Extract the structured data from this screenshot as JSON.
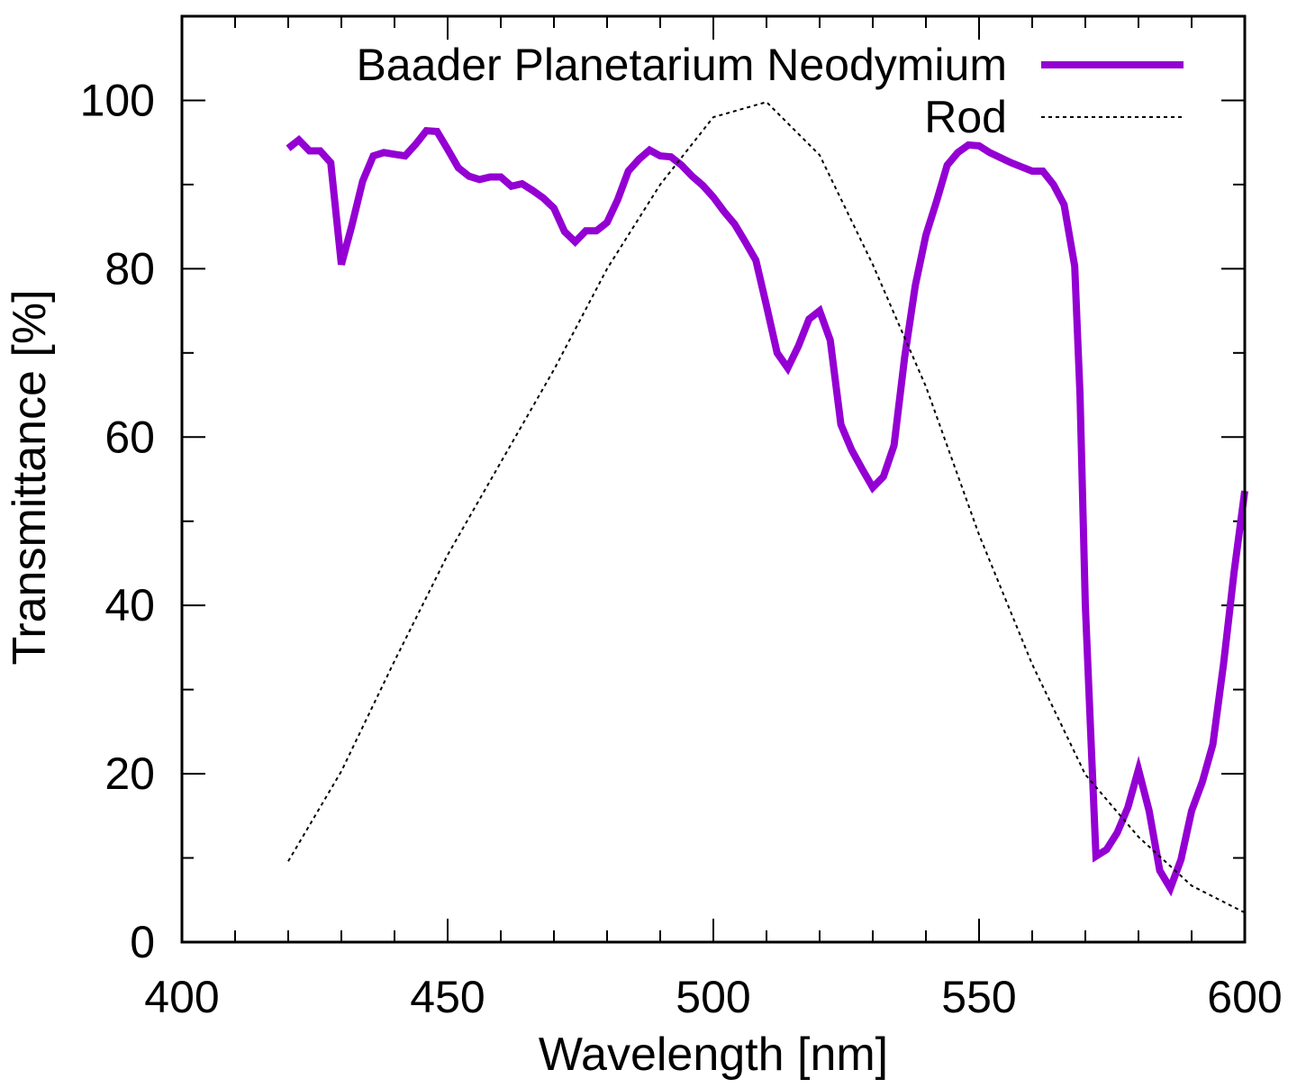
{
  "chart_data": {
    "type": "line",
    "xlabel": "Wavelength [nm]",
    "ylabel": "Transmittance [%]",
    "xlim": [
      400,
      600
    ],
    "ylim": [
      0,
      110
    ],
    "x_ticks": [
      400,
      450,
      500,
      550,
      600
    ],
    "x_minor_step": 10,
    "y_ticks": [
      0,
      20,
      40,
      60,
      80,
      100
    ],
    "y_minor_step": 10,
    "legend_position": "top-right",
    "series": [
      {
        "name": "Baader Planetarium Neodymium",
        "color": "#9400d3",
        "style": "solid-thick",
        "x": [
          420,
          422,
          424,
          426,
          428,
          430,
          432,
          434,
          436,
          438,
          440,
          442,
          444,
          446,
          448,
          450,
          452,
          454,
          456,
          458,
          460,
          462,
          464,
          466,
          468,
          470,
          472,
          474,
          476,
          478,
          480,
          482,
          484,
          486,
          488,
          490,
          492,
          494,
          496,
          498,
          500,
          502,
          504,
          506,
          508,
          510,
          512,
          514,
          516,
          518,
          520,
          522,
          524,
          526,
          528,
          530,
          532,
          534,
          536,
          538,
          540,
          542,
          544,
          546,
          548,
          550,
          552,
          554,
          556,
          558,
          560,
          562,
          564,
          566,
          568,
          569,
          570,
          571,
          572,
          574,
          576,
          578,
          580,
          582,
          584,
          586,
          588,
          590,
          592,
          594,
          596,
          598,
          600
        ],
        "y": [
          94.3,
          95.3,
          94.0,
          94.0,
          92.6,
          80.5,
          85.2,
          90.4,
          93.4,
          93.8,
          93.6,
          93.4,
          94.8,
          96.4,
          96.3,
          94.2,
          92.0,
          91.0,
          90.6,
          90.9,
          90.9,
          89.8,
          90.1,
          89.3,
          88.4,
          87.2,
          84.4,
          83.2,
          84.5,
          84.5,
          85.5,
          88.2,
          91.6,
          93.0,
          94.1,
          93.4,
          93.3,
          92.3,
          91.0,
          89.9,
          88.5,
          86.8,
          85.3,
          83.2,
          81.0,
          75.6,
          70.0,
          68.2,
          70.8,
          74.0,
          75.0,
          71.5,
          61.5,
          58.5,
          56.2,
          54.0,
          55.3,
          59.0,
          69.5,
          78.0,
          84.0,
          88.0,
          92.3,
          93.8,
          94.7,
          94.6,
          93.8,
          93.2,
          92.6,
          92.1,
          91.6,
          91.6,
          90.0,
          87.6,
          80.3,
          65.0,
          40.0,
          25.0,
          10.2,
          11.0,
          13.0,
          16.0,
          20.5,
          15.6,
          8.5,
          6.4,
          9.8,
          15.6,
          19.0,
          23.5,
          33.0,
          44.0,
          53.6
        ]
      },
      {
        "name": "Rod",
        "color": "#000000",
        "style": "dotted-thin",
        "x": [
          420,
          430,
          440,
          450,
          460,
          470,
          480,
          490,
          500,
          510,
          520,
          530,
          540,
          550,
          560,
          570,
          580,
          590,
          600
        ],
        "y": [
          9.6,
          20.3,
          33.4,
          46.0,
          57.0,
          68.0,
          80.0,
          90.0,
          98.0,
          99.8,
          93.5,
          80.5,
          66.0,
          48.4,
          33.0,
          19.9,
          12.5,
          6.7,
          3.5
        ]
      }
    ]
  }
}
